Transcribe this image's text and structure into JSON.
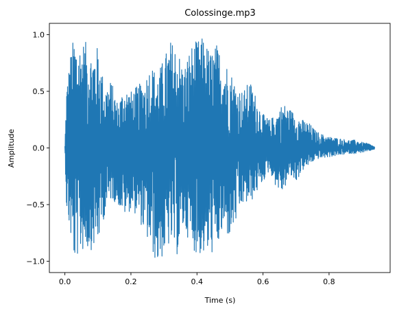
{
  "chart_data": {
    "type": "line",
    "title": "Colossinge.mp3",
    "xlabel": "Time (s)",
    "ylabel": "Amplitude",
    "xlim": [
      -0.047,
      0.985
    ],
    "ylim": [
      -1.1,
      1.1
    ],
    "xticks": [
      0.0,
      0.2,
      0.4,
      0.6,
      0.8
    ],
    "xtick_labels": [
      "0.0",
      "0.2",
      "0.4",
      "0.6",
      "0.8"
    ],
    "yticks": [
      -1.0,
      -0.5,
      0.0,
      0.5,
      1.0
    ],
    "ytick_labels": [
      "−1.0",
      "−0.5",
      "0.0",
      "0.5",
      "1.0"
    ],
    "grid": false,
    "series": [
      {
        "color": "#1f77b4",
        "duration_s": 0.938,
        "envelope": {
          "t": [
            0.0,
            0.005,
            0.02,
            0.03,
            0.04,
            0.06,
            0.08,
            0.1,
            0.12,
            0.14,
            0.16,
            0.18,
            0.2,
            0.22,
            0.24,
            0.26,
            0.28,
            0.3,
            0.32,
            0.34,
            0.36,
            0.38,
            0.4,
            0.42,
            0.44,
            0.46,
            0.48,
            0.5,
            0.52,
            0.54,
            0.56,
            0.58,
            0.6,
            0.62,
            0.64,
            0.66,
            0.68,
            0.7,
            0.72,
            0.74,
            0.76,
            0.78,
            0.8,
            0.82,
            0.84,
            0.86,
            0.88,
            0.9,
            0.92,
            0.938
          ],
          "max": [
            0.02,
            0.55,
            0.9,
            1.0,
            0.92,
            0.95,
            0.85,
            0.9,
            0.55,
            0.6,
            0.4,
            0.55,
            0.5,
            0.55,
            0.6,
            0.75,
            0.65,
            0.8,
            0.95,
            0.9,
            0.7,
            0.9,
            0.95,
            0.98,
            0.85,
            0.92,
            0.8,
            0.7,
            0.55,
            0.5,
            0.6,
            0.45,
            0.3,
            0.25,
            0.3,
            0.4,
            0.35,
            0.3,
            0.25,
            0.22,
            0.15,
            0.12,
            0.1,
            0.09,
            0.08,
            0.07,
            0.07,
            0.05,
            0.04,
            0.01
          ],
          "min": [
            -0.02,
            -0.55,
            -0.85,
            -1.02,
            -0.95,
            -0.9,
            -0.9,
            -0.85,
            -0.6,
            -0.45,
            -0.5,
            -0.6,
            -0.55,
            -0.6,
            -0.75,
            -0.9,
            -1.04,
            -0.95,
            -0.85,
            -0.95,
            -0.7,
            -0.85,
            -0.95,
            -0.95,
            -0.95,
            -0.9,
            -0.75,
            -0.8,
            -0.65,
            -0.5,
            -0.5,
            -0.4,
            -0.3,
            -0.2,
            -0.35,
            -0.4,
            -0.25,
            -0.3,
            -0.2,
            -0.15,
            -0.1,
            -0.09,
            -0.08,
            -0.07,
            -0.06,
            -0.05,
            -0.05,
            -0.04,
            -0.03,
            -0.01
          ]
        }
      }
    ]
  }
}
